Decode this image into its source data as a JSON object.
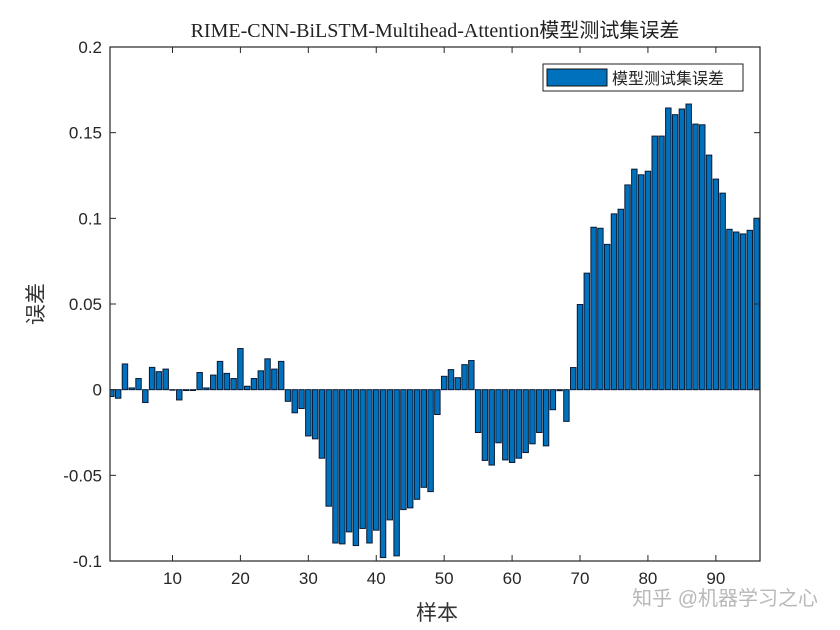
{
  "chart_data": {
    "type": "bar",
    "title": "RIME-CNN-BiLSTM-Multihead-Attention模型测试集误差",
    "xlabel": "样本",
    "ylabel": "误差",
    "xlim": [
      0.8,
      96.5
    ],
    "ylim": [
      -0.1,
      0.2
    ],
    "xticks": [
      10,
      20,
      30,
      40,
      50,
      60,
      70,
      80,
      90
    ],
    "yticks": [
      -0.1,
      -0.05,
      0,
      0.05,
      0.1,
      0.15,
      0.2
    ],
    "ytick_labels": [
      "-0.1",
      "-0.05",
      "0",
      "0.05",
      "0.1",
      "0.15",
      "0.2"
    ],
    "grid": false,
    "legend": {
      "position": "top-right",
      "entries": [
        "模型测试集误差"
      ]
    },
    "bar_color": "#0072BD",
    "series": [
      {
        "name": "模型测试集误差",
        "values": [
          -0.004,
          -0.005,
          0.015,
          0.001,
          0.0065,
          -0.0075,
          0.013,
          0.0105,
          0.012,
          0.0,
          -0.006,
          -0.0005,
          -0.0005,
          0.01,
          0.001,
          0.0085,
          0.0165,
          0.0095,
          0.0065,
          0.024,
          0.002,
          0.0065,
          0.011,
          0.018,
          0.012,
          0.0165,
          -0.0068,
          -0.0135,
          -0.011,
          -0.027,
          -0.0287,
          -0.04,
          -0.068,
          -0.0895,
          -0.09,
          -0.083,
          -0.091,
          -0.081,
          -0.0895,
          -0.082,
          -0.098,
          -0.076,
          -0.097,
          -0.07,
          -0.069,
          -0.064,
          -0.057,
          -0.0595,
          -0.0145,
          0.0078,
          0.0117,
          0.007,
          0.0146,
          0.017,
          -0.025,
          -0.0413,
          -0.044,
          -0.031,
          -0.041,
          -0.0425,
          -0.04,
          -0.0367,
          -0.0316,
          -0.025,
          -0.0328,
          -0.0117,
          -0.0006,
          -0.0185,
          0.0129,
          0.0497,
          0.068,
          0.0948,
          0.0942,
          0.0848,
          0.1026,
          0.1053,
          0.1195,
          0.1287,
          0.1254,
          0.1275,
          0.148,
          0.148,
          0.1644,
          0.1605,
          0.1638,
          0.1667,
          0.155,
          0.1546,
          0.1369,
          0.1229,
          0.1147,
          0.0936,
          0.092,
          0.0909,
          0.093,
          0.1
        ]
      }
    ]
  },
  "watermark": "知乎 @机器学习之心"
}
